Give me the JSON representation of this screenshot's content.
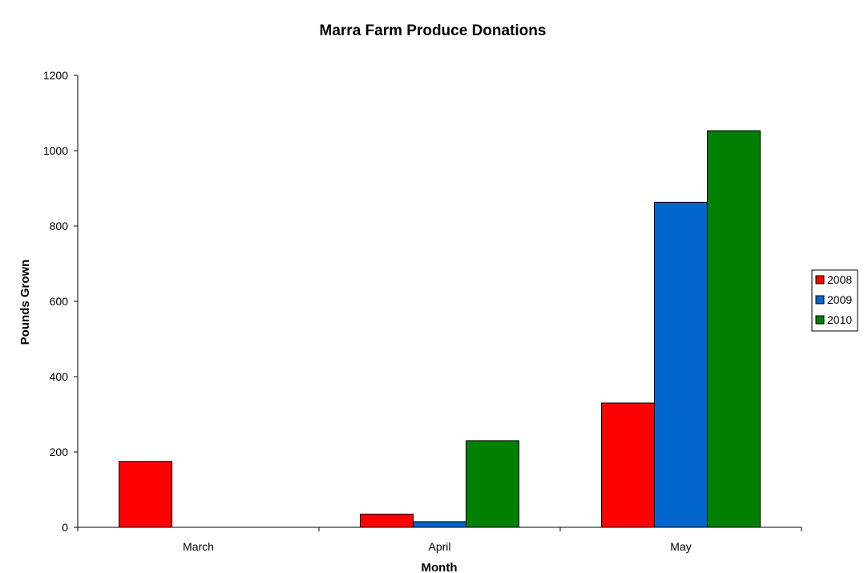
{
  "colors": {
    "2008": "#ff0000",
    "2009": "#0066cc",
    "2010": "#008000"
  },
  "chart_data": {
    "type": "bar",
    "title": "Marra Farm Produce Donations",
    "xlabel": "Month",
    "ylabel": "Pounds Grown",
    "categories": [
      "March",
      "April",
      "May"
    ],
    "ylim": [
      0,
      1200
    ],
    "yticks": [
      0,
      200,
      400,
      600,
      800,
      1000,
      1200
    ],
    "grid": false,
    "legend": "right",
    "series": [
      {
        "name": "2008",
        "values": [
          175,
          35,
          330
        ]
      },
      {
        "name": "2009",
        "values": [
          0,
          15,
          863
        ]
      },
      {
        "name": "2010",
        "values": [
          0,
          230,
          1053
        ]
      }
    ]
  }
}
